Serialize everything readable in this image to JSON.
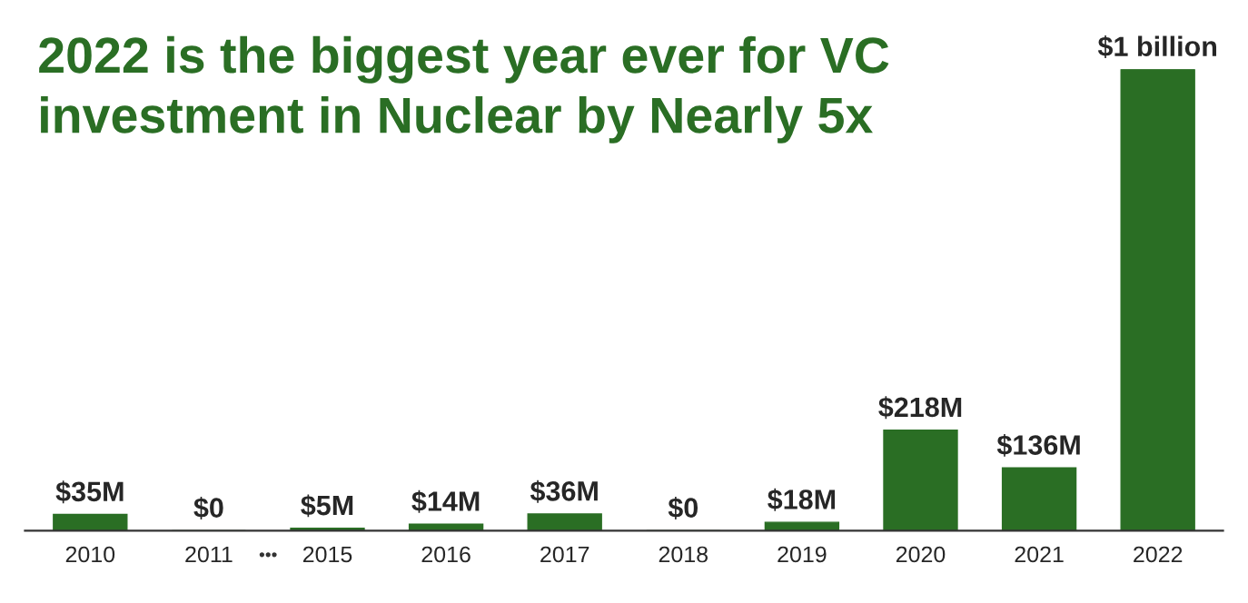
{
  "chart_data": {
    "type": "bar",
    "title": "2022 is the biggest year ever for VC\ninvestment in Nuclear by Nearly 5x",
    "categories": [
      "2010",
      "2011",
      "2015",
      "2016",
      "2017",
      "2018",
      "2019",
      "2020",
      "2021",
      "2022"
    ],
    "values": [
      35000000,
      0,
      5000000,
      14000000,
      36000000,
      0,
      18000000,
      218000000,
      136000000,
      1000000000
    ],
    "value_labels": [
      "$35M",
      "$0",
      "$5M",
      "$14M",
      "$36M",
      "$0",
      "$18M",
      "$218M",
      "$136M",
      "$1 billion"
    ],
    "color": "#2a6e24",
    "annotations": [
      "•••"
    ],
    "grid": false,
    "legend": false
  }
}
